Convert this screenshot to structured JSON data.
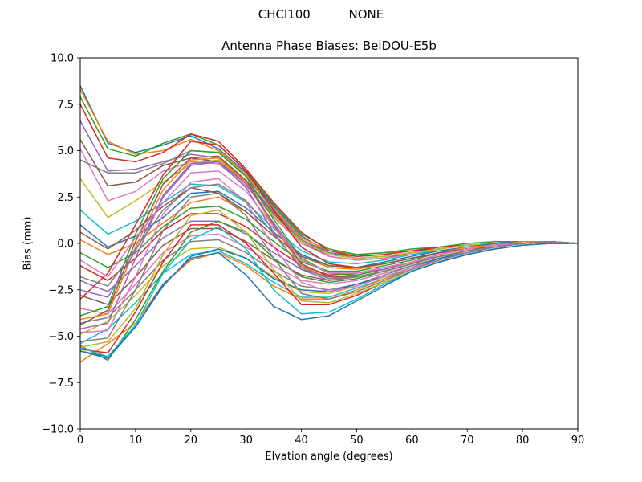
{
  "suptitle": "CHCl100          NONE",
  "chart_data": {
    "type": "line",
    "title": "Antenna Phase Biases: BeiDOU-E5b",
    "xlabel": "Elvation angle (degrees)",
    "ylabel": "Bias (mm)",
    "xlim": [
      0,
      90
    ],
    "ylim": [
      -10,
      10
    ],
    "x": [
      0,
      5,
      10,
      15,
      20,
      25,
      30,
      35,
      40,
      45,
      50,
      55,
      60,
      65,
      70,
      75,
      80,
      85,
      90
    ],
    "xticks": [
      "0",
      "10",
      "20",
      "30",
      "40",
      "50",
      "60",
      "70",
      "80",
      "90"
    ],
    "yticks": [
      "10.0",
      "7.5",
      "5.0",
      "2.5",
      "0.0",
      "−2.5",
      "−5.0",
      "−7.5",
      "−10.0"
    ],
    "grid": false,
    "legend": "none",
    "colors": [
      "#1f77b4",
      "#ff7f0e",
      "#2ca02c",
      "#d62728",
      "#9467bd",
      "#8c564b",
      "#e377c2",
      "#7f7f7f",
      "#bcbd22",
      "#17becf"
    ],
    "series": [
      {
        "values": [
          8.5,
          5.4,
          4.9,
          5.3,
          5.8,
          5.1,
          3.8,
          2.0,
          0.4,
          -0.5,
          -0.7,
          -0.6,
          -0.4,
          -0.3,
          -0.1,
          0.0,
          0.1,
          0.1,
          0.0
        ]
      },
      {
        "values": [
          8.3,
          5.5,
          4.8,
          5.0,
          5.6,
          5.0,
          3.7,
          1.9,
          0.3,
          -0.4,
          -0.6,
          -0.5,
          -0.4,
          -0.2,
          -0.1,
          0.0,
          0.1,
          0.1,
          0.0
        ]
      },
      {
        "values": [
          7.9,
          5.1,
          4.7,
          5.4,
          5.9,
          5.3,
          3.9,
          2.1,
          0.5,
          -0.3,
          -0.6,
          -0.5,
          -0.3,
          -0.2,
          0.0,
          0.1,
          0.1,
          0.1,
          0.0
        ]
      },
      {
        "values": [
          7.5,
          4.6,
          4.4,
          4.9,
          5.9,
          5.5,
          4.0,
          2.2,
          0.6,
          -0.4,
          -0.7,
          -0.6,
          -0.4,
          -0.2,
          -0.1,
          0.0,
          0.1,
          0.1,
          0.0
        ]
      },
      {
        "values": [
          6.6,
          3.9,
          4.0,
          4.4,
          4.8,
          4.6,
          3.4,
          1.7,
          0.2,
          -0.6,
          -0.8,
          -0.7,
          -0.5,
          -0.3,
          -0.1,
          0.0,
          0.1,
          0.1,
          0.0
        ]
      },
      {
        "values": [
          5.6,
          3.1,
          3.3,
          4.2,
          4.6,
          4.4,
          3.3,
          1.6,
          0.1,
          -0.7,
          -0.9,
          -0.8,
          -0.5,
          -0.3,
          -0.1,
          0.0,
          0.1,
          0.1,
          0.0
        ]
      },
      {
        "values": [
          5.1,
          2.3,
          2.8,
          3.9,
          4.4,
          4.3,
          3.1,
          1.4,
          0.0,
          -0.7,
          -0.9,
          -0.8,
          -0.6,
          -0.3,
          -0.1,
          0.0,
          0.1,
          0.1,
          0.0
        ]
      },
      {
        "values": [
          4.5,
          3.8,
          3.8,
          4.3,
          5.0,
          4.9,
          3.6,
          1.8,
          0.2,
          -0.5,
          -0.8,
          -0.7,
          -0.5,
          -0.3,
          -0.1,
          0.0,
          0.1,
          0.1,
          0.0
        ]
      },
      {
        "values": [
          3.5,
          1.4,
          2.3,
          3.3,
          4.3,
          4.5,
          3.3,
          1.5,
          0.1,
          -0.6,
          -0.8,
          -0.7,
          -0.5,
          -0.3,
          -0.1,
          0.0,
          0.1,
          0.1,
          0.0
        ]
      },
      {
        "values": [
          1.8,
          0.5,
          1.2,
          2.2,
          3.2,
          3.1,
          2.2,
          0.8,
          -0.4,
          -1.0,
          -1.1,
          -0.9,
          -0.6,
          -0.4,
          -0.2,
          0.0,
          0.1,
          0.1,
          0.0
        ]
      },
      {
        "values": [
          1.0,
          -0.2,
          0.4,
          1.4,
          2.7,
          2.8,
          1.9,
          0.6,
          -0.6,
          -1.2,
          -1.3,
          -1.0,
          -0.7,
          -0.4,
          -0.2,
          0.0,
          0.1,
          0.1,
          0.0
        ]
      },
      {
        "values": [
          0.2,
          -0.6,
          0.0,
          1.1,
          2.2,
          2.5,
          1.7,
          0.4,
          -0.7,
          -1.3,
          -1.4,
          -1.1,
          -0.8,
          -0.5,
          -0.2,
          -0.1,
          0.1,
          0.1,
          0.0
        ]
      },
      {
        "values": [
          -0.5,
          -1.3,
          -0.5,
          0.9,
          1.9,
          2.0,
          1.3,
          0.1,
          -1.0,
          -1.5,
          -1.5,
          -1.2,
          -0.9,
          -0.5,
          -0.3,
          -0.1,
          0.0,
          0.1,
          0.0
        ]
      },
      {
        "values": [
          -1.2,
          -2.0,
          -0.8,
          0.7,
          1.6,
          1.6,
          0.9,
          -0.2,
          -1.2,
          -1.7,
          -1.6,
          -1.3,
          -1.0,
          -0.6,
          -0.3,
          -0.1,
          0.0,
          0.1,
          0.0
        ]
      },
      {
        "values": [
          -2.0,
          -2.6,
          -1.2,
          0.3,
          1.2,
          1.2,
          0.5,
          -0.5,
          -1.4,
          -1.8,
          -1.7,
          -1.4,
          -1.0,
          -0.6,
          -0.3,
          -0.1,
          0.0,
          0.1,
          0.0
        ]
      },
      {
        "values": [
          -2.8,
          -3.3,
          -1.8,
          -0.1,
          0.8,
          0.8,
          0.1,
          -0.9,
          -1.7,
          -2.0,
          -1.8,
          -1.5,
          -1.1,
          -0.7,
          -0.4,
          -0.1,
          0.0,
          0.1,
          0.0
        ]
      },
      {
        "values": [
          -3.5,
          -3.8,
          -2.2,
          -0.5,
          0.4,
          0.5,
          -0.2,
          -1.2,
          -2.0,
          -2.2,
          -2.0,
          -1.6,
          -1.2,
          -0.8,
          -0.4,
          -0.2,
          0.0,
          0.1,
          0.0
        ]
      },
      {
        "values": [
          -4.3,
          -4.0,
          -2.5,
          -0.9,
          0.1,
          0.2,
          -0.5,
          -1.5,
          -2.3,
          -2.5,
          -2.2,
          -1.7,
          -1.2,
          -0.8,
          -0.4,
          -0.2,
          0.0,
          0.1,
          0.0
        ]
      },
      {
        "values": [
          -4.9,
          -4.2,
          -2.8,
          -1.2,
          -0.3,
          -0.2,
          -0.8,
          -1.8,
          -2.6,
          -2.7,
          -2.3,
          -1.8,
          -1.3,
          -0.8,
          -0.5,
          -0.2,
          0.0,
          0.1,
          0.0
        ]
      },
      {
        "values": [
          -5.4,
          -4.6,
          -3.2,
          -1.6,
          -0.6,
          -0.4,
          -1.1,
          -2.1,
          -2.9,
          -2.9,
          -2.4,
          -1.9,
          -1.3,
          -0.9,
          -0.5,
          -0.2,
          0.0,
          0.1,
          0.0
        ]
      },
      {
        "values": [
          -5.8,
          -6.1,
          -4.5,
          -2.3,
          -0.7,
          -0.3,
          -0.8,
          -1.9,
          -2.5,
          -2.6,
          -2.2,
          -1.8,
          -1.3,
          -0.8,
          -0.5,
          -0.2,
          0.0,
          0.1,
          0.0
        ]
      },
      {
        "values": [
          -6.4,
          -5.4,
          -4.3,
          -2.2,
          -0.9,
          -0.5,
          -1.2,
          -2.3,
          -3.0,
          -3.0,
          -2.5,
          -1.9,
          -1.4,
          -0.9,
          -0.5,
          -0.2,
          0.0,
          0.1,
          0.0
        ]
      },
      {
        "values": [
          -5.5,
          -6.3,
          -4.1,
          -1.5,
          0.6,
          1.2,
          0.6,
          -0.8,
          -1.8,
          -2.1,
          -1.9,
          -1.5,
          -1.1,
          -0.7,
          -0.4,
          -0.2,
          0.0,
          0.1,
          0.0
        ]
      },
      {
        "values": [
          -5.7,
          -5.9,
          -3.7,
          -1.0,
          1.0,
          1.0,
          0.0,
          -1.6,
          -3.3,
          -3.3,
          -2.8,
          -2.1,
          -1.5,
          -1.0,
          -0.6,
          -0.3,
          -0.1,
          0.0,
          0.0
        ]
      },
      {
        "values": [
          -4.6,
          -4.3,
          -0.8,
          2.6,
          4.3,
          4.4,
          3.0,
          0.6,
          -1.4,
          -2.0,
          -1.8,
          -1.5,
          -1.1,
          -0.7,
          -0.4,
          -0.2,
          0.0,
          0.1,
          0.0
        ]
      },
      {
        "values": [
          -4.4,
          -3.6,
          0.1,
          3.2,
          4.6,
          4.7,
          3.4,
          1.0,
          -1.1,
          -1.8,
          -1.8,
          -1.5,
          -1.1,
          -0.7,
          -0.4,
          -0.2,
          0.0,
          0.1,
          0.0
        ]
      },
      {
        "values": [
          -4.8,
          -4.7,
          -1.8,
          1.6,
          3.3,
          3.5,
          2.2,
          -0.2,
          -2.1,
          -2.6,
          -2.3,
          -1.8,
          -1.3,
          -0.9,
          -0.5,
          -0.2,
          0.0,
          0.1,
          0.0
        ]
      },
      {
        "values": [
          -5.3,
          -5.1,
          -2.5,
          0.7,
          2.5,
          2.7,
          1.5,
          -0.8,
          -2.7,
          -3.0,
          -2.6,
          -2.0,
          -1.4,
          -0.9,
          -0.5,
          -0.2,
          0.0,
          0.1,
          0.0
        ]
      },
      {
        "values": [
          -5.6,
          -5.3,
          -3.5,
          -0.6,
          1.5,
          1.8,
          0.6,
          -1.4,
          -3.1,
          -3.2,
          -2.7,
          -2.1,
          -1.5,
          -1.0,
          -0.6,
          -0.3,
          -0.1,
          0.0,
          0.0
        ]
      },
      {
        "values": [
          -5.6,
          -6.1,
          -4.4,
          -1.6,
          0.2,
          0.9,
          -0.3,
          -2.5,
          -3.8,
          -3.7,
          -3.0,
          -2.2,
          -1.5,
          -1.0,
          -0.6,
          -0.3,
          -0.1,
          0.0,
          0.0
        ]
      },
      {
        "values": [
          -5.8,
          -6.2,
          -4.5,
          -2.2,
          -0.8,
          -0.5,
          -1.7,
          -3.4,
          -4.1,
          -3.9,
          -3.1,
          -2.3,
          -1.5,
          -1.0,
          -0.6,
          -0.3,
          -0.1,
          0.0,
          0.0
        ]
      },
      {
        "values": [
          -4.1,
          -3.8,
          -0.2,
          2.9,
          4.5,
          4.6,
          3.3,
          0.9,
          -1.2,
          -1.9,
          -1.8,
          -1.5,
          -1.1,
          -0.7,
          -0.4,
          -0.2,
          0.0,
          0.1,
          0.0
        ]
      },
      {
        "values": [
          -3.9,
          -3.4,
          0.5,
          3.5,
          5.0,
          4.9,
          3.6,
          1.3,
          -0.8,
          -1.6,
          -1.7,
          -1.4,
          -1.0,
          -0.7,
          -0.4,
          -0.2,
          0.0,
          0.1,
          0.0
        ]
      },
      {
        "values": [
          -3.0,
          -1.6,
          1.0,
          3.7,
          5.5,
          5.3,
          3.9,
          1.8,
          -0.2,
          -1.1,
          -1.3,
          -1.1,
          -0.8,
          -0.5,
          -0.3,
          -0.1,
          0.0,
          0.1,
          0.0
        ]
      },
      {
        "values": [
          -2.5,
          -2.9,
          -0.4,
          2.5,
          4.2,
          4.4,
          3.2,
          1.1,
          -0.9,
          -1.6,
          -1.6,
          -1.4,
          -1.0,
          -0.7,
          -0.4,
          -0.2,
          0.0,
          0.1,
          0.0
        ]
      },
      {
        "values": [
          0.6,
          -0.3,
          0.7,
          2.0,
          3.0,
          2.7,
          1.7,
          0.4,
          -0.7,
          -1.2,
          -1.3,
          -1.1,
          -0.8,
          -0.5,
          -0.3,
          -0.1,
          0.0,
          0.1,
          0.0
        ]
      },
      {
        "values": [
          -0.9,
          -1.8,
          0.3,
          2.2,
          3.8,
          3.9,
          2.8,
          0.9,
          -0.9,
          -1.6,
          -1.6,
          -1.3,
          -1.0,
          -0.6,
          -0.3,
          -0.1,
          0.0,
          0.1,
          0.0
        ]
      },
      {
        "values": [
          -1.8,
          -2.3,
          -0.3,
          1.8,
          3.0,
          3.2,
          2.3,
          0.5,
          -1.3,
          -1.9,
          -1.8,
          -1.5,
          -1.1,
          -0.7,
          -0.4,
          -0.2,
          0.0,
          0.1,
          0.0
        ]
      }
    ]
  }
}
